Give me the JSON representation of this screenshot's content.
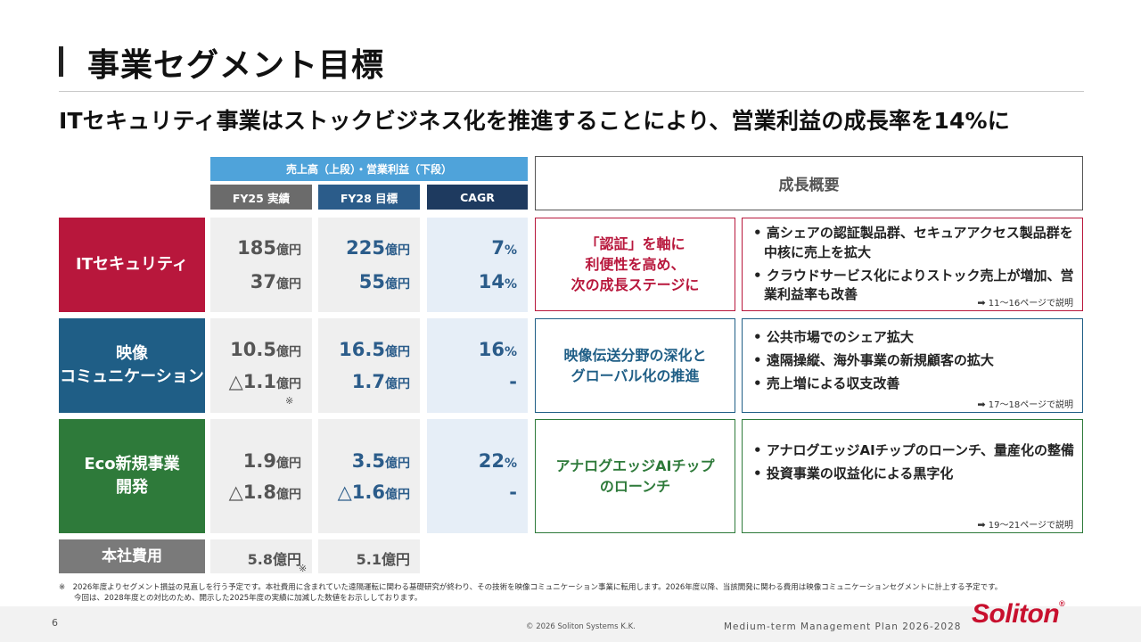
{
  "title": "事業セグメント目標",
  "subtitle": "ITセキュリティ事業はストックビジネス化を推進することにより、営業利益の成長率を14%に",
  "table_header": {
    "top": "売上高（上段）・営業利益（下段）",
    "fy25": "FY25 実績",
    "fy28": "FY28 目標",
    "cagr": "CAGR",
    "summary": "成長概要"
  },
  "segments": [
    {
      "label_line1": "ITセキュリティ",
      "label_line2": "",
      "color": "#b8173c",
      "fy25_sales": "185",
      "fy25_sales_unit": "億円",
      "fy25_profit": "37",
      "fy25_profit_unit": "億円",
      "fy28_sales": "225",
      "fy28_sales_unit": "億円",
      "fy28_profit": "55",
      "fy28_profit_unit": "億円",
      "cagr_sales": "7",
      "cagr_sales_unit": "%",
      "cagr_profit": "14",
      "cagr_profit_unit": "%",
      "focus_line1": "「認証」を軸に",
      "focus_line2": "利便性を高め、",
      "focus_line3": "次の成長ステージに",
      "bullets": [
        "高シェアの認証製品群、セキュアアクセス製品群を中核に売上を拡大",
        "クラウドサービス化によりストック売上が増加、営業利益率も改善"
      ],
      "ref": "11～16ページで説明"
    },
    {
      "label_line1": "映像",
      "label_line2": "コミュニケーション",
      "color": "#1f5e86",
      "fy25_sales": "10.5",
      "fy25_sales_unit": "億円",
      "fy25_profit": "△1.1",
      "fy25_profit_unit": "億円",
      "fy25_note": "※",
      "fy28_sales": "16.5",
      "fy28_sales_unit": "億円",
      "fy28_profit": "1.7",
      "fy28_profit_unit": "億円",
      "cagr_sales": "16",
      "cagr_sales_unit": "%",
      "cagr_profit": "-",
      "focus_line1": "映像伝送分野の深化と",
      "focus_line2": "グローバル化の推進",
      "bullets": [
        "公共市場でのシェア拡大",
        "遠隔操縦、海外事業の新規顧客の拡大",
        "売上増による収支改善"
      ],
      "ref": "17～18ページで説明"
    },
    {
      "label_line1": "Eco新規事業",
      "label_line2": "開発",
      "color": "#2e7a3a",
      "fy25_sales": "1.9",
      "fy25_sales_unit": "億円",
      "fy25_profit": "△1.8",
      "fy25_profit_unit": "億円",
      "fy28_sales": "3.5",
      "fy28_sales_unit": "億円",
      "fy28_profit": "△1.6",
      "fy28_profit_unit": "億円",
      "cagr_sales": "22",
      "cagr_sales_unit": "%",
      "cagr_profit": "-",
      "focus_line1": "アナログエッジAIチップ",
      "focus_line2": "のローンチ",
      "bullets": [
        "アナログエッジAIチップのローンチ、量産化の整備",
        "投資事業の収益化による黒字化"
      ],
      "ref": "19～21ページで説明"
    }
  ],
  "hq": {
    "label": "本社費用",
    "color": "#7a7a7a",
    "fy25": "5.8億円",
    "fy25_note": "※",
    "fy28": "5.1億円"
  },
  "footnote_line1": "※　2026年度よりセグメント損益の見直しを行う予定です。本社費用に含まれていた遠隔運転に関わる基礎研究が終わり、その技術を映像コミュニケーション事業に転用します。2026年度以降、当該開発に関わる費用は映像コミュニケーションセグメントに計上する予定です。",
  "footnote_line2": "　　今回は、2028年度との対比のため、開示した2025年度の実績に加減した数値をお示ししております。",
  "footer": {
    "page": "6",
    "copyright": "© 2026 Soliton Systems K.K.",
    "plan": "Medium-term Management Plan 2026-2028",
    "logo": "Soliton",
    "logo_mark": "®"
  },
  "icons": {
    "ref_arrow": "right-arrow-icon"
  }
}
